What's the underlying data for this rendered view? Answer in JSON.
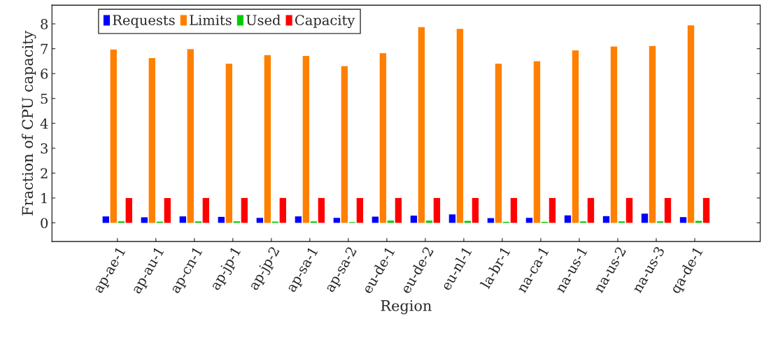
{
  "chart_data": {
    "type": "bar",
    "xlabel": "Region",
    "ylabel": "Fraction of CPU capacity",
    "categories": [
      "ap-ae-1",
      "ap-au-1",
      "ap-cn-1",
      "ap-jp-1",
      "ap-jp-2",
      "ap-sa-1",
      "ap-sa-2",
      "eu-de-1",
      "eu-de-2",
      "eu-nl-1",
      "la-br-1",
      "na-ca-1",
      "na-us-1",
      "na-us-2",
      "na-us-3",
      "qa-de-1"
    ],
    "series": [
      {
        "name": "Requests",
        "color": "#0000ff",
        "values": [
          0.26,
          0.22,
          0.26,
          0.24,
          0.2,
          0.26,
          0.2,
          0.25,
          0.29,
          0.34,
          0.19,
          0.2,
          0.3,
          0.27,
          0.37,
          0.23
        ]
      },
      {
        "name": "Limits",
        "color": "#ff8000",
        "values": [
          6.97,
          6.62,
          6.98,
          6.4,
          6.74,
          6.71,
          6.3,
          6.82,
          7.87,
          7.8,
          6.4,
          6.5,
          6.93,
          7.09,
          7.11,
          7.94
        ]
      },
      {
        "name": "Used",
        "color": "#00cc00",
        "values": [
          0.06,
          0.05,
          0.06,
          0.06,
          0.05,
          0.06,
          0.03,
          0.09,
          0.09,
          0.08,
          0.04,
          0.04,
          0.06,
          0.06,
          0.06,
          0.08
        ]
      },
      {
        "name": "Capacity",
        "color": "#ff0000",
        "values": [
          1,
          1,
          1,
          1,
          1,
          1,
          1,
          1,
          1,
          1,
          1,
          1,
          1,
          1,
          1,
          1
        ]
      }
    ],
    "ylim": [
      -0.75,
      8.75
    ],
    "yticks": [
      0,
      1,
      2,
      3,
      4,
      5,
      6,
      7,
      8
    ],
    "grid": false,
    "legend": "top left"
  }
}
